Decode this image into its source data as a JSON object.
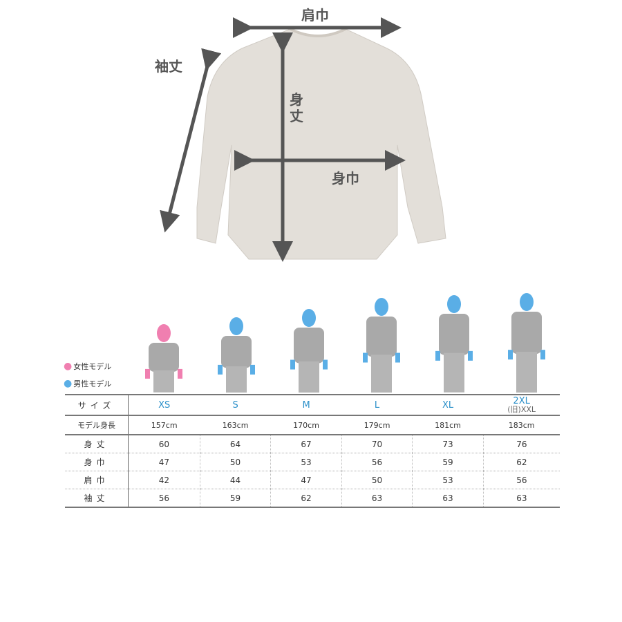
{
  "dimensions": {
    "shoulder": "肩巾",
    "sleeve": "袖丈",
    "length": "身丈",
    "width": "身巾"
  },
  "legend": {
    "female": "女性モデル",
    "male": "男性モデル"
  },
  "colors": {
    "female": "#f07fb0",
    "male": "#5aaee6",
    "size_text": "#2a8fc9",
    "shirt": "#e3dfd9"
  },
  "table": {
    "size_label": "サイズ",
    "height_label": "モデル身長",
    "sizes": [
      "XS",
      "S",
      "M",
      "L",
      "XL",
      "2XL"
    ],
    "old_size_note": "(旧)XXL",
    "model_heights": [
      "157cm",
      "163cm",
      "170cm",
      "179cm",
      "181cm",
      "183cm"
    ],
    "models": [
      "female",
      "male",
      "male",
      "male",
      "male",
      "male"
    ],
    "rows": [
      {
        "label": "身丈",
        "values": [
          "60",
          "64",
          "67",
          "70",
          "73",
          "76"
        ]
      },
      {
        "label": "身巾",
        "values": [
          "47",
          "50",
          "53",
          "56",
          "59",
          "62"
        ]
      },
      {
        "label": "肩巾",
        "values": [
          "42",
          "44",
          "47",
          "50",
          "53",
          "56"
        ]
      },
      {
        "label": "袖丈",
        "values": [
          "56",
          "59",
          "62",
          "63",
          "63",
          "63"
        ]
      }
    ]
  }
}
